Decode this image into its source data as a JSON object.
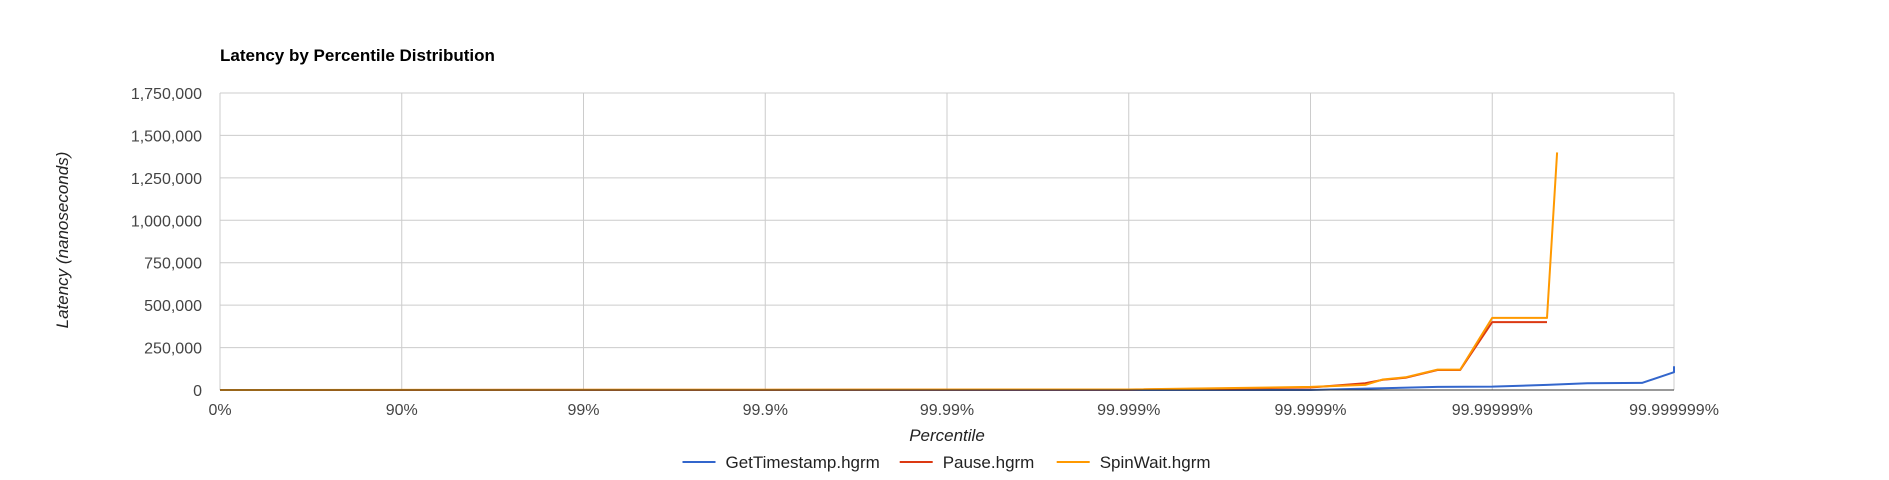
{
  "chart_data": {
    "type": "line",
    "title": "Latency by Percentile Distribution",
    "xlabel": "Percentile",
    "ylabel": "Latency (nanoseconds)",
    "x_scale": "log-inverse (1 / (1 - percentile))",
    "x_tick_labels": [
      "0%",
      "90%",
      "99%",
      "99.9%",
      "99.99%",
      "99.999%",
      "99.9999%",
      "99.99999%",
      "99.999999%"
    ],
    "xlim": [
      "0%",
      "99.999999%"
    ],
    "ylim": [
      0,
      1750000
    ],
    "y_ticks": [
      0,
      250000,
      500000,
      750000,
      1000000,
      1250000,
      1500000,
      1750000
    ],
    "y_tick_labels": [
      "0",
      "250,000",
      "500,000",
      "750,000",
      "1,000,000",
      "1,250,000",
      "1,500,000",
      "1,750,000"
    ],
    "grid": true,
    "legend_position": "bottom",
    "series": [
      {
        "name": "GetTimestamp.hgrm",
        "color": "#3366cc",
        "points": [
          {
            "x": "0%",
            "y": 0
          },
          {
            "x": "99.9999%",
            "y": 0
          },
          {
            "x": "99.99995%",
            "y": 8000
          },
          {
            "x": "99.99998%",
            "y": 18000
          },
          {
            "x": "99.99999%",
            "y": 20000
          },
          {
            "x": "99.999995%",
            "y": 30000
          },
          {
            "x": "99.999997%",
            "y": 40000
          },
          {
            "x": "99.9999985%",
            "y": 42000
          },
          {
            "x": "99.999999%",
            "y": 105000
          },
          {
            "x": "99.999999%",
            "y": 108000
          },
          {
            "x": "99.999999%",
            "y": 140000
          }
        ]
      },
      {
        "name": "Pause.hgrm",
        "color": "#dc3912",
        "points": [
          {
            "x": "0%",
            "y": 0
          },
          {
            "x": "99.999%",
            "y": 2000
          },
          {
            "x": "99.9999%",
            "y": 15000
          },
          {
            "x": "99.99995%",
            "y": 40000
          },
          {
            "x": "99.99996%",
            "y": 60000
          },
          {
            "x": "99.99997%",
            "y": 72000
          },
          {
            "x": "99.99998%",
            "y": 118000
          },
          {
            "x": "99.999985%",
            "y": 118000
          },
          {
            "x": "99.99999%",
            "y": 400000
          },
          {
            "x": "99.999995%",
            "y": 400000
          }
        ]
      },
      {
        "name": "SpinWait.hgrm",
        "color": "#ff9900",
        "points": [
          {
            "x": "0%",
            "y": 0
          },
          {
            "x": "99.999%",
            "y": 3000
          },
          {
            "x": "99.9999%",
            "y": 18000
          },
          {
            "x": "99.99995%",
            "y": 30000
          },
          {
            "x": "99.99996%",
            "y": 62000
          },
          {
            "x": "99.99997%",
            "y": 75000
          },
          {
            "x": "99.99998%",
            "y": 120000
          },
          {
            "x": "99.999985%",
            "y": 120000
          },
          {
            "x": "99.99999%",
            "y": 425000
          },
          {
            "x": "99.999995%",
            "y": 425000
          },
          {
            "x": "99.9999956%",
            "y": 1400000
          }
        ]
      }
    ]
  }
}
